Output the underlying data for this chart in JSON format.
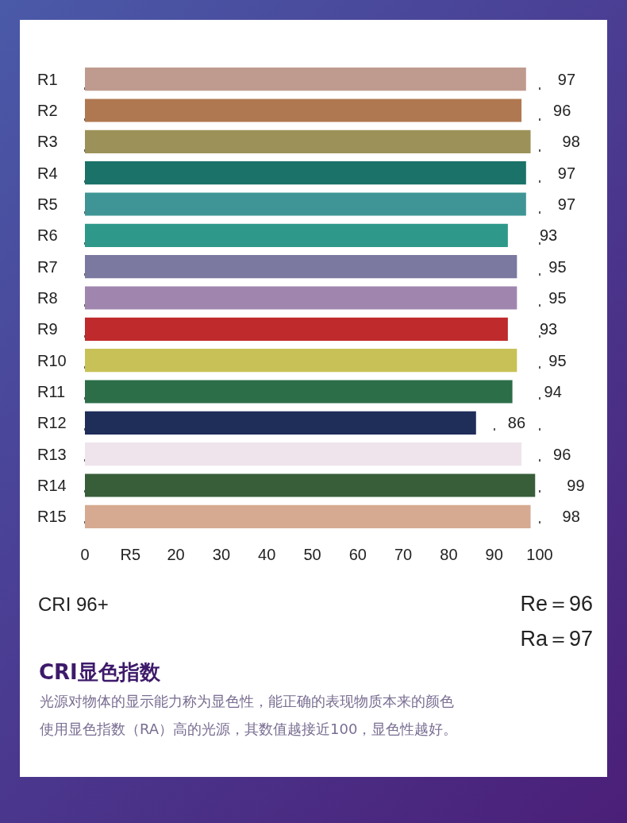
{
  "chart_data": {
    "type": "bar",
    "orientation": "horizontal",
    "title": "CRI显色指数",
    "categories": [
      "R1",
      "R2",
      "R3",
      "R4",
      "R5",
      "R6",
      "R7",
      "R8",
      "R9",
      "R10",
      "R11",
      "R12",
      "R13",
      "R14",
      "R15"
    ],
    "values": [
      97,
      96,
      98,
      97,
      97,
      93,
      95,
      95,
      93,
      95,
      94,
      86,
      96,
      99,
      98
    ],
    "colors": [
      "#bf9b8f",
      "#b07851",
      "#9c9259",
      "#1a7269",
      "#3f9595",
      "#2e998a",
      "#7c79a0",
      "#a086af",
      "#bf2a2c",
      "#c8c157",
      "#2c6e48",
      "#1f2d59",
      "#efe4ec",
      "#375e39",
      "#d6aa91"
    ],
    "xlim": [
      0,
      100
    ],
    "xticks": [
      0,
      {
        "value": 10,
        "label": "R5"
      },
      20,
      30,
      40,
      50,
      60,
      70,
      80,
      90,
      100
    ],
    "grid": "x",
    "data_labels": true,
    "annotations": [
      "CRI 96+",
      "Re＝96",
      "Ra＝97",
      "光源对物体的显示能力称为显色性，能正确的表现物质本来的颜色",
      "使用显色指数（RA）高的光源，其数值越接近100，显色性越好。"
    ]
  }
}
